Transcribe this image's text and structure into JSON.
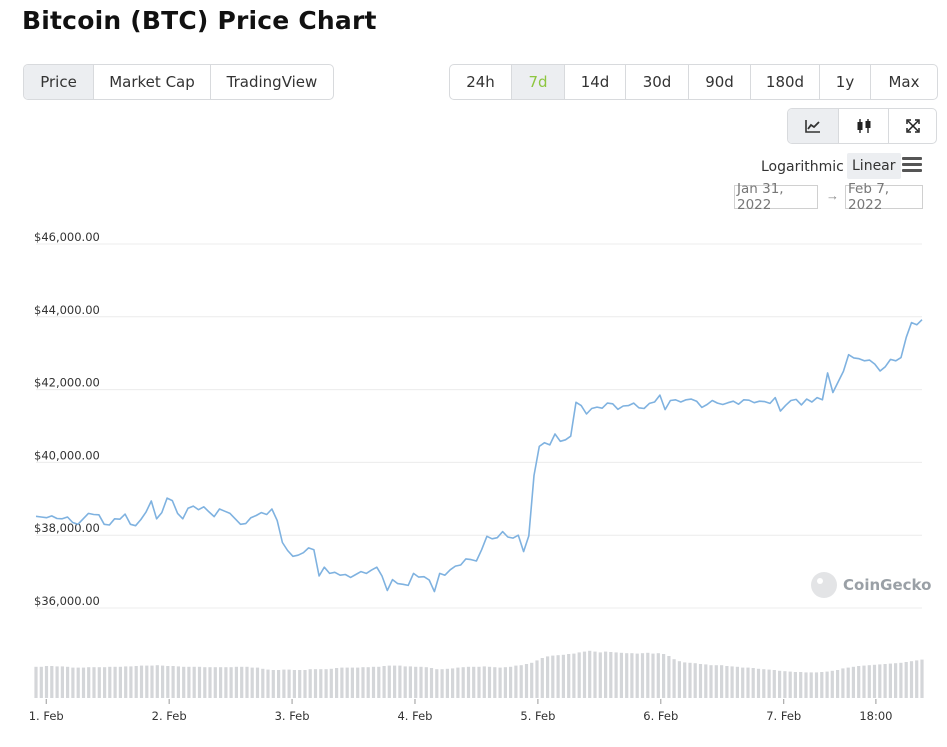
{
  "page": {
    "title": "Bitcoin (BTC) Price Chart"
  },
  "view_tabs": [
    {
      "label": "Price",
      "active": true
    },
    {
      "label": "Market Cap",
      "active": false
    },
    {
      "label": "TradingView",
      "active": false
    }
  ],
  "range_tabs": [
    {
      "label": "24h",
      "active": false
    },
    {
      "label": "7d",
      "active": true
    },
    {
      "label": "14d",
      "active": false
    },
    {
      "label": "30d",
      "active": false
    },
    {
      "label": "90d",
      "active": false
    },
    {
      "label": "180d",
      "active": false
    },
    {
      "label": "1y",
      "active": false
    },
    {
      "label": "Max",
      "active": false
    }
  ],
  "chart_type_buttons": [
    {
      "icon": "line-chart-icon",
      "active": true
    },
    {
      "icon": "candlestick-icon",
      "active": false
    },
    {
      "icon": "expand-icon",
      "active": false
    }
  ],
  "scale": {
    "log_label": "Logarithmic",
    "linear_label": "Linear",
    "selected": "Linear"
  },
  "date_range": {
    "from": "Jan 31, 2022",
    "arrow": "→",
    "to": "Feb 7, 2022"
  },
  "watermark": "CoinGecko",
  "colors": {
    "line": "#7fb2e0",
    "volume": "#d4d6d9",
    "accent": "#8dc63f"
  },
  "chart_data": {
    "type": "line",
    "ylim": [
      36000,
      46000
    ],
    "y_ticks": [
      {
        "value": 46000,
        "label": "$46,000.00"
      },
      {
        "value": 44000,
        "label": "$44,000.00"
      },
      {
        "value": 42000,
        "label": "$42,000.00"
      },
      {
        "value": 40000,
        "label": "$40,000.00"
      },
      {
        "value": 38000,
        "label": "$38,000.00"
      },
      {
        "value": 36000,
        "label": "$36,000.00"
      }
    ],
    "x_range_hours": [
      -2,
      171
    ],
    "x_ticks": [
      {
        "hours": 0,
        "label": "1. Feb"
      },
      {
        "hours": 24,
        "label": "2. Feb"
      },
      {
        "hours": 48,
        "label": "3. Feb"
      },
      {
        "hours": 72,
        "label": "4. Feb"
      },
      {
        "hours": 96,
        "label": "5. Feb"
      },
      {
        "hours": 120,
        "label": "6. Feb"
      },
      {
        "hours": 144,
        "label": "7. Feb"
      },
      {
        "hours": 162,
        "label": "18:00"
      }
    ],
    "series": [
      {
        "values": [
          38520,
          38500,
          38480,
          38530,
          38460,
          38450,
          38500,
          38350,
          38300,
          38450,
          38600,
          38570,
          38560,
          38300,
          38280,
          38450,
          38440,
          38580,
          38300,
          38260,
          38430,
          38640,
          38940,
          38450,
          38620,
          39020,
          38950,
          38600,
          38450,
          38740,
          38800,
          38700,
          38780,
          38640,
          38510,
          38720,
          38660,
          38600,
          38450,
          38300,
          38320,
          38480,
          38540,
          38620,
          38570,
          38720,
          38400,
          37800,
          37580,
          37420,
          37450,
          37520,
          37650,
          37600,
          36880,
          37120,
          36950,
          36980,
          36900,
          36920,
          36840,
          36920,
          37000,
          36950,
          37040,
          37120,
          36880,
          36480,
          36780,
          36670,
          36650,
          36620,
          36950,
          36850,
          36860,
          36770,
          36450,
          36950,
          36900,
          37050,
          37150,
          37180,
          37350,
          37330,
          37290,
          37600,
          37970,
          37900,
          37930,
          38100,
          37950,
          37920,
          38000,
          37550,
          37980,
          39640,
          40440,
          40540,
          40480,
          40780,
          40580,
          40620,
          40720,
          41650,
          41560,
          41330,
          41480,
          41520,
          41490,
          41630,
          41610,
          41460,
          41550,
          41560,
          41630,
          41500,
          41480,
          41620,
          41660,
          41850,
          41450,
          41700,
          41720,
          41660,
          41720,
          41740,
          41680,
          41510,
          41590,
          41700,
          41630,
          41590,
          41640,
          41680,
          41600,
          41720,
          41710,
          41640,
          41680,
          41670,
          41620,
          41780,
          41410,
          41570,
          41700,
          41730,
          41580,
          41740,
          41660,
          41780,
          41720,
          42460,
          41920,
          42210,
          42500,
          42960,
          42870,
          42850,
          42790,
          42810,
          42700,
          42510,
          42630,
          42830,
          42790,
          42880,
          43440,
          43840,
          43780,
          43920
        ]
      }
    ],
    "volume": [
      0.78,
      0.78,
      0.8,
      0.8,
      0.79,
      0.79,
      0.78,
      0.76,
      0.76,
      0.76,
      0.77,
      0.77,
      0.77,
      0.77,
      0.78,
      0.78,
      0.78,
      0.79,
      0.79,
      0.8,
      0.81,
      0.81,
      0.81,
      0.82,
      0.81,
      0.8,
      0.8,
      0.79,
      0.78,
      0.78,
      0.78,
      0.78,
      0.77,
      0.77,
      0.77,
      0.77,
      0.77,
      0.77,
      0.78,
      0.78,
      0.78,
      0.76,
      0.76,
      0.73,
      0.71,
      0.7,
      0.7,
      0.71,
      0.71,
      0.7,
      0.7,
      0.7,
      0.72,
      0.72,
      0.72,
      0.72,
      0.73,
      0.75,
      0.76,
      0.76,
      0.76,
      0.76,
      0.77,
      0.77,
      0.78,
      0.78,
      0.8,
      0.81,
      0.81,
      0.81,
      0.79,
      0.79,
      0.78,
      0.78,
      0.77,
      0.75,
      0.72,
      0.72,
      0.73,
      0.74,
      0.76,
      0.77,
      0.78,
      0.78,
      0.78,
      0.79,
      0.78,
      0.77,
      0.76,
      0.77,
      0.78,
      0.81,
      0.82,
      0.85,
      0.88,
      0.94,
      1.0,
      1.04,
      1.06,
      1.07,
      1.08,
      1.1,
      1.11,
      1.14,
      1.16,
      1.18,
      1.16,
      1.14,
      1.16,
      1.15,
      1.14,
      1.13,
      1.12,
      1.12,
      1.11,
      1.12,
      1.13,
      1.11,
      1.12,
      1.1,
      1.05,
      0.97,
      0.92,
      0.89,
      0.88,
      0.87,
      0.85,
      0.84,
      0.82,
      0.82,
      0.82,
      0.8,
      0.79,
      0.78,
      0.76,
      0.76,
      0.75,
      0.73,
      0.72,
      0.71,
      0.7,
      0.68,
      0.67,
      0.66,
      0.65,
      0.65,
      0.64,
      0.64,
      0.64,
      0.65,
      0.66,
      0.68,
      0.7,
      0.74,
      0.76,
      0.78,
      0.8,
      0.81,
      0.82,
      0.83,
      0.84,
      0.85,
      0.86,
      0.87,
      0.88,
      0.9,
      0.92,
      0.94,
      0.96
    ]
  }
}
